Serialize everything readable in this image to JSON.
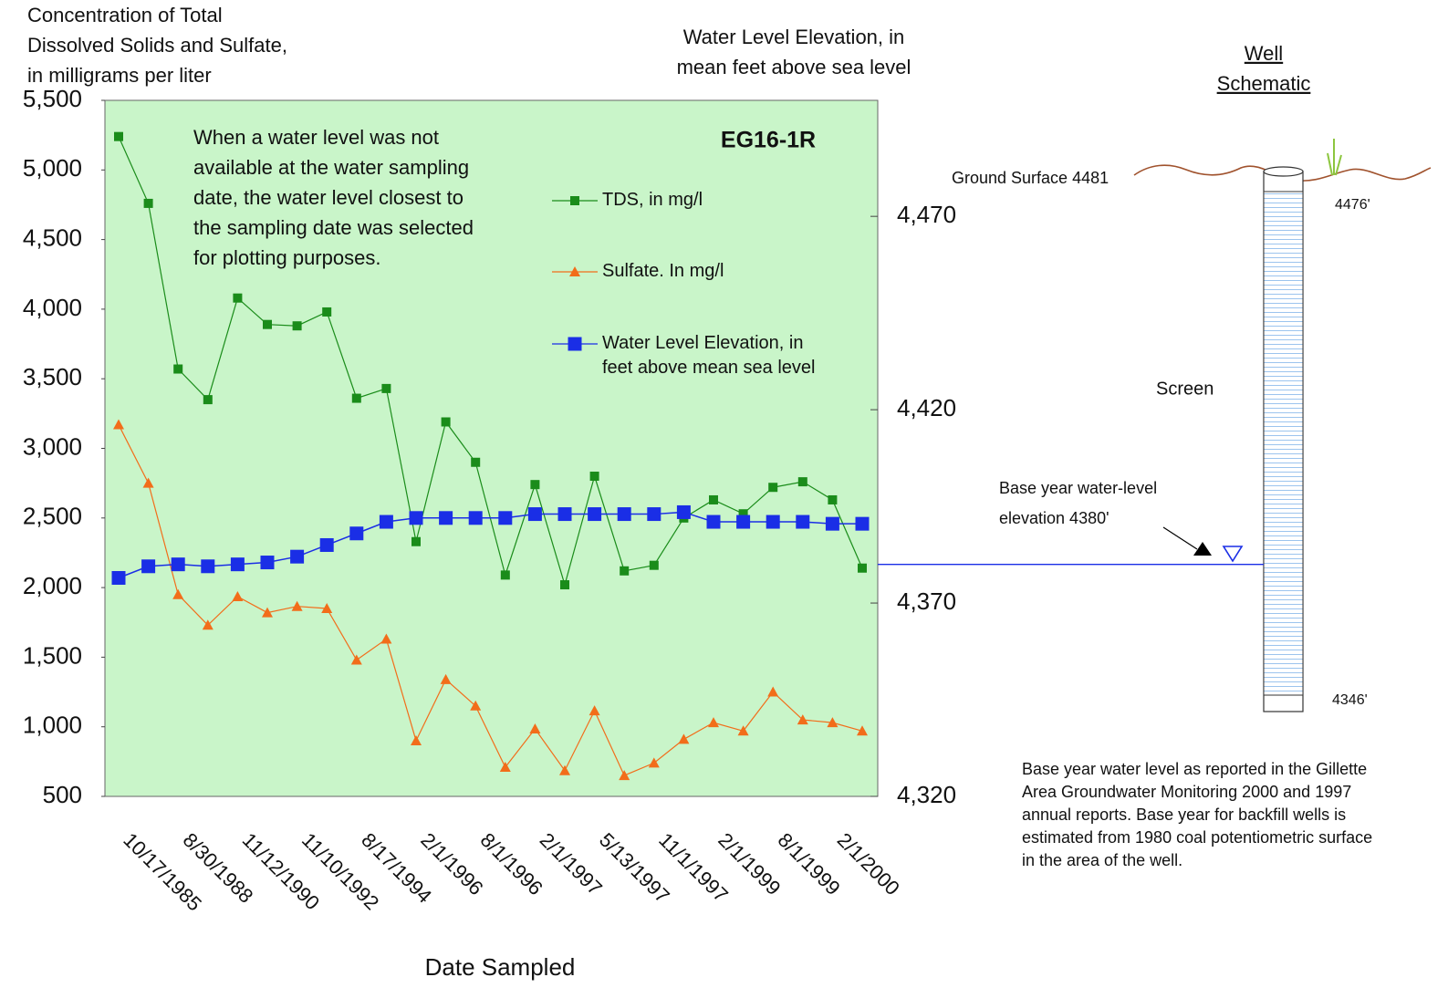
{
  "chart_data": {
    "type": "line",
    "title": "EG16-1R",
    "y_axis_title": [
      "Concentration of Total",
      "Dissolved Solids and Sulfate,",
      "in milligrams per liter"
    ],
    "y2_axis_title": [
      "Water Level Elevation, in",
      "mean feet above sea level"
    ],
    "x_axis_title": "Date Sampled",
    "note": [
      "When a water level was not",
      "available at the water sampling",
      "date, the water level closest to",
      "the sampling date was selected",
      "for plotting purposes."
    ],
    "categories": [
      "10/17/1985",
      null,
      "8/30/1988",
      null,
      "11/12/1990",
      null,
      "11/10/1992",
      null,
      "8/17/1994",
      null,
      "2/1/1996",
      null,
      "8/1/1996",
      null,
      "2/1/1997",
      null,
      "5/13/1997",
      null,
      "11/1/1997",
      null,
      "2/1/1999",
      null,
      "8/1/1999",
      null,
      "2/1/2000",
      null
    ],
    "series": [
      {
        "name": "TDS, in mg/l",
        "color": "#1a8c1a",
        "marker": "square",
        "values": [
          5240,
          4760,
          3570,
          3350,
          4080,
          3890,
          3880,
          3980,
          3360,
          3430,
          2330,
          3190,
          2900,
          2090,
          2740,
          2020,
          2800,
          2120,
          2160,
          2500,
          2630,
          2530,
          2720,
          2760,
          2630,
          2140
        ]
      },
      {
        "name": "Sulfate. In mg/l",
        "color": "#f26d1a",
        "marker": "triangle",
        "values": [
          3170,
          2750,
          1950,
          1730,
          1935,
          1820,
          1865,
          1850,
          1480,
          1630,
          900,
          1340,
          1150,
          710,
          985,
          685,
          1115,
          650,
          740,
          910,
          1030,
          970,
          1250,
          1050,
          1030,
          970
        ]
      },
      {
        "name": "Water Level Elevation, in feet above mean sea level",
        "color": "#1a2ee6",
        "marker": "big-square",
        "axis": "y2",
        "values": [
          4376.5,
          4379.5,
          4380,
          4379.5,
          4380,
          4380.5,
          4382,
          4385,
          4388,
          4391,
          4392,
          4392,
          4392,
          4392,
          4393,
          4393,
          4393,
          4393,
          4393,
          4393.5,
          4391,
          4391,
          4391,
          4391,
          4390.5,
          4390.5
        ]
      }
    ],
    "ylim": [
      500,
      5500
    ],
    "yticks": [
      {
        "value": 500,
        "label": "500"
      },
      {
        "value": 1000,
        "label": "1,000"
      },
      {
        "value": 1500,
        "label": "1,500"
      },
      {
        "value": 2000,
        "label": "2,000"
      },
      {
        "value": 2500,
        "label": "2,500"
      },
      {
        "value": 3000,
        "label": "3,000"
      },
      {
        "value": 3500,
        "label": "3,500"
      },
      {
        "value": 4000,
        "label": "4,000"
      },
      {
        "value": 4500,
        "label": "4,500"
      },
      {
        "value": 5000,
        "label": "5,000"
      },
      {
        "value": 5500,
        "label": "5,500"
      }
    ],
    "y2lim": [
      4320,
      4500
    ],
    "y2ticks": [
      {
        "value": 4320,
        "label": "4,320"
      },
      {
        "value": 4370,
        "label": "4,370"
      },
      {
        "value": 4420,
        "label": "4,420"
      },
      {
        "value": 4470,
        "label": "4,470"
      }
    ],
    "plot_background": "#c9f5c9",
    "base_year_water_level": 4380,
    "base_line_color": "#1a2ee6"
  },
  "well_schematic": {
    "title": [
      "Well",
      "Schematic"
    ],
    "ground_surface": "Ground Surface 4481",
    "top_label": "4476'",
    "screen_label": "Screen",
    "base_year_label": [
      "Base year water-level",
      "elevation 4380'"
    ],
    "bottom_label": "4346'",
    "footnote": [
      "Base year water level as reported in the Gillette",
      "Area Groundwater Monitoring 2000 and 1997",
      "annual reports.  Base year for backfill wells is",
      "estimated from 1980 coal potentiometric surface",
      "in the area of the well."
    ]
  }
}
